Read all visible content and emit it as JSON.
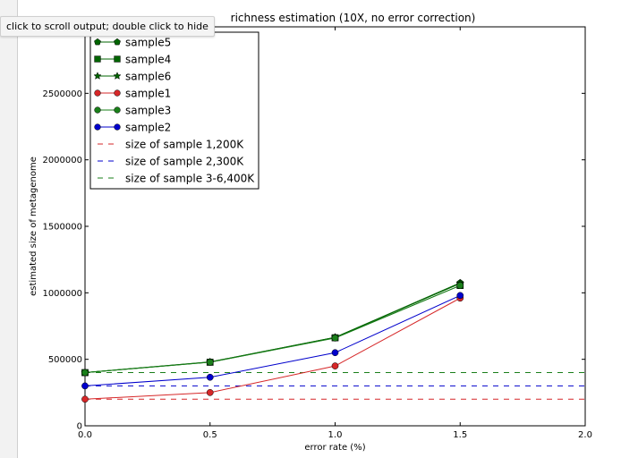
{
  "ui": {
    "scroll_tooltip": "click to scroll output; double click to hide"
  },
  "chart_data": {
    "type": "line",
    "title": "richness estimation (10X, no error correction)",
    "xlabel": "error rate (%)",
    "ylabel": "estimated size of metagenome",
    "xlim": [
      0.0,
      2.0
    ],
    "ylim": [
      0,
      3000000
    ],
    "xticks": [
      0.0,
      0.5,
      1.0,
      1.5,
      2.0
    ],
    "xtick_labels": [
      "0.0",
      "0.5",
      "1.0",
      "1.5",
      "2.0"
    ],
    "yticks": [
      0,
      500000,
      1000000,
      1500000,
      2000000,
      2500000
    ],
    "ytick_labels": [
      "0",
      "500000",
      "1000000",
      "1500000",
      "2000000",
      "2500000"
    ],
    "grid": false,
    "legend_position": "upper-left",
    "x": [
      0.0,
      0.5,
      1.0,
      1.5
    ],
    "series": [
      {
        "name": "sample5",
        "color": "#006400",
        "marker": "pentagon",
        "values": [
          400000,
          480000,
          665000,
          1075000
        ]
      },
      {
        "name": "sample4",
        "color": "#006400",
        "marker": "square",
        "values": [
          400000,
          478000,
          662000,
          1055000
        ]
      },
      {
        "name": "sample6",
        "color": "#006400",
        "marker": "star",
        "values": [
          400000,
          480000,
          665000,
          1070000
        ]
      },
      {
        "name": "sample1",
        "color": "#d62728",
        "marker": "circle",
        "values": [
          200000,
          250000,
          450000,
          960000
        ]
      },
      {
        "name": "sample3",
        "color": "#1a7f1a",
        "marker": "circle",
        "values": [
          400000,
          478000,
          660000,
          1055000
        ]
      },
      {
        "name": "sample2",
        "color": "#0000cc",
        "marker": "circle",
        "values": [
          300000,
          365000,
          550000,
          980000
        ]
      }
    ],
    "reference_lines": [
      {
        "name": "size of sample 1,200K",
        "color": "#d62728",
        "value": 200000
      },
      {
        "name": "size of sample 2,300K",
        "color": "#0000cc",
        "value": 300000
      },
      {
        "name": "size of sample 3-6,400K",
        "color": "#1a7f1a",
        "value": 400000
      }
    ]
  }
}
